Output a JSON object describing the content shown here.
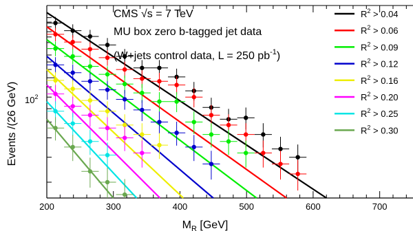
{
  "chart_data": {
    "type": "scatter",
    "title_lines": [
      "CMS  √s = 7 TeV",
      "MU box zero b-tagged jet data",
      "(W+jets control data,  L = 250 pb",
      "-1",
      ")"
    ],
    "xlabel_main": "M",
    "xlabel_sub": "R",
    "xlabel_tail": " [GeV]",
    "ylabel": "Events /(26 GeV)",
    "xlim": [
      200,
      750
    ],
    "ylog": true,
    "ylim": [
      25,
      230
    ],
    "x_ticks": [
      200,
      300,
      400,
      500,
      600,
      700
    ],
    "y_tick_label": {
      "base": "10",
      "exp": "2",
      "value": 100
    },
    "grid": false,
    "legend_position": "right",
    "series": [
      {
        "name": "R2 > 0.04",
        "label_prefix": "R",
        "label_sup": "2",
        "label_suffix": " > 0.04",
        "color": "#000000",
        "x": [
          213,
          239,
          265,
          291,
          317,
          343,
          369,
          395,
          421,
          447,
          473,
          499,
          525,
          551,
          577
        ],
        "y": [
          188,
          172,
          161,
          146,
          128,
          112,
          112,
          101,
          86,
          71,
          62,
          63,
          52,
          44,
          40
        ],
        "fit": [
          [
            200,
            212
          ],
          [
            620,
            25
          ]
        ]
      },
      {
        "name": "R2 > 0.06",
        "label_prefix": "R",
        "label_sup": "2",
        "label_suffix": " > 0.06",
        "color": "#ff0000",
        "x": [
          213,
          239,
          265,
          291,
          317,
          343,
          369,
          395,
          421,
          447,
          473,
          499,
          525,
          551,
          577
        ],
        "y": [
          165,
          151,
          139,
          126,
          110,
          99,
          96,
          92,
          80,
          65,
          58,
          52,
          42,
          37,
          33
        ],
        "fit": [
          [
            200,
            180
          ],
          [
            560,
            25
          ]
        ]
      },
      {
        "name": "R2 > 0.09",
        "label_prefix": "R",
        "label_sup": "2",
        "label_suffix": " > 0.09",
        "color": "#00ee00",
        "x": [
          213,
          239,
          265,
          291,
          317,
          343,
          369,
          395,
          421,
          447,
          473,
          499
        ],
        "y": [
          140,
          128,
          114,
          104,
          93,
          84,
          76,
          76,
          60,
          52,
          48,
          42
        ],
        "fit": [
          [
            200,
            155
          ],
          [
            515,
            25
          ]
        ]
      },
      {
        "name": "R2 > 0.12",
        "label_prefix": "R",
        "label_sup": "2",
        "label_suffix": " > 0.12",
        "color": "#0000cc",
        "x": [
          213,
          239,
          265,
          291,
          317,
          343,
          369,
          395,
          421,
          447
        ],
        "y": [
          116,
          106,
          96,
          87,
          78,
          69,
          60,
          53,
          45,
          37
        ],
        "fit": [
          [
            200,
            128
          ],
          [
            450,
            25
          ]
        ]
      },
      {
        "name": "R2 > 0.16",
        "label_prefix": "R",
        "label_sup": "2",
        "label_suffix": " > 0.16",
        "color": "#eeee00",
        "x": [
          213,
          239,
          265,
          291,
          317,
          343,
          369
        ],
        "y": [
          97,
          88,
          77,
          68,
          58,
          52,
          46
        ],
        "fit": [
          [
            200,
            110
          ],
          [
            405,
            25
          ]
        ]
      },
      {
        "name": "R2 > 0.20",
        "label_prefix": "R",
        "label_sup": "2",
        "label_suffix": " > 0.20",
        "color": "#ff00ff",
        "x": [
          213,
          239,
          265,
          291,
          317,
          343
        ],
        "y": [
          83,
          72,
          65,
          56,
          50,
          42
        ],
        "fit": [
          [
            200,
            92
          ],
          [
            370,
            25
          ]
        ]
      },
      {
        "name": "R2 > 0.25",
        "label_prefix": "R",
        "label_sup": "2",
        "label_suffix": " > 0.25",
        "color": "#00e5e5",
        "x": [
          213,
          239,
          265,
          291
        ],
        "y": [
          68,
          59,
          48,
          41
        ],
        "fit": [
          [
            200,
            76
          ],
          [
            335,
            25
          ]
        ]
      },
      {
        "name": "R2 > 0.30",
        "label_prefix": "R",
        "label_sup": "2",
        "label_suffix": " > 0.30",
        "color": "#6aa84f",
        "x": [
          213,
          239,
          265,
          291,
          317
        ],
        "y": [
          56,
          45,
          34,
          30,
          26
        ],
        "fit": [
          [
            200,
            62
          ],
          [
            300,
            25
          ]
        ]
      }
    ]
  }
}
